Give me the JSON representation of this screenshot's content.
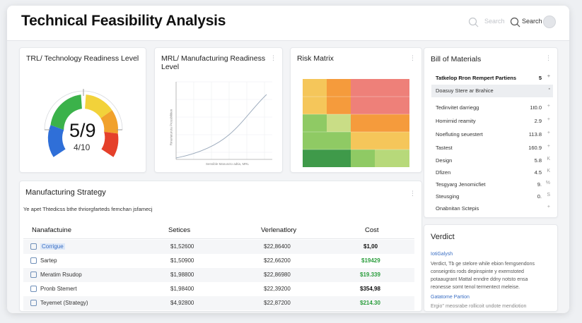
{
  "header": {
    "title": "Technical Feasibility Analysis",
    "search_placeholder": "Search",
    "search_label": "Search",
    "icons": [
      "search-icon",
      "search-icon",
      "avatar"
    ]
  },
  "trl": {
    "title": "TRL/ Technology Readiness Level",
    "value": "5/9",
    "sub": "4/10",
    "level_fraction": 0.56,
    "colors": [
      "#2f6fd8",
      "#3bb24a",
      "#f2d23a",
      "#f1a12c",
      "#e5402a"
    ]
  },
  "mrl": {
    "title": "MRL/ Manufacturing Readiness Level",
    "xlabel": "Sensible Manuscto adtia, MRL",
    "ylabel": "Rmuriaturuta Prossbilitien"
  },
  "risk": {
    "title": "Risk Matrix",
    "colors": {
      "green_dark": "#3f9a4a",
      "green": "#8fca64",
      "yellow": "#f5c65a",
      "orange": "#f59b3c",
      "red": "#ee8079"
    }
  },
  "bom": {
    "title": "Bill of Materials",
    "rows": [
      {
        "name": "Tatkelop Rron Rempert Partiens",
        "value": "5",
        "icon": "+"
      },
      {
        "name": "Doasuy Stere ar Brahice",
        "value": "",
        "icon": "▪"
      },
      {
        "name": "Tedinvitet darriegg",
        "value": "1t0.0",
        "icon": "+"
      },
      {
        "name": "Homirnid reamity",
        "value": "2.9",
        "icon": "+"
      },
      {
        "name": "Noefluting seuestert",
        "value": "113.8",
        "icon": "+"
      },
      {
        "name": "Tastest",
        "value": "160.9",
        "icon": "+"
      },
      {
        "name": "Design",
        "value": "5.8",
        "icon": "K"
      },
      {
        "name": "Dfizen",
        "value": "4.5",
        "icon": "K"
      },
      {
        "name": "Tesgyarg Jenomicfiet",
        "value": "9.",
        "icon": "%"
      },
      {
        "name": "Steusging",
        "value": "0.",
        "icon": "S"
      },
      {
        "name": "Onabnitan Sctepis",
        "value": "",
        "icon": "+"
      }
    ]
  },
  "strategy": {
    "title": "Manufacturing Strategy",
    "subtitle": "Ye apet Thtedicss bthe thriorgfarteds femchan jsfamecj",
    "columns": [
      "Nanafactuine",
      "Setices",
      "Verlenatlory",
      "Cost"
    ],
    "rows": [
      {
        "name": "Corrigue",
        "setices": "$1,52600",
        "verl": "$22,86400",
        "cost": "$1,00",
        "cost_color": "dark",
        "selected": true
      },
      {
        "name": "Sartep",
        "setices": "$1,50900",
        "verl": "$22,66200",
        "cost": "$19429",
        "cost_color": "green"
      },
      {
        "name": "Meratim Rsudop",
        "setices": "$1,98800",
        "verl": "$22,86980",
        "cost": "$19.339",
        "cost_color": "green"
      },
      {
        "name": "Pronb Stemert",
        "setices": "$1,98400",
        "verl": "$22,39200",
        "cost": "$354,98",
        "cost_color": "dark"
      },
      {
        "name": "Teyemet (Strategy)",
        "setices": "$4,92800",
        "verl": "$22,87200",
        "cost": "$214.30",
        "cost_color": "green"
      }
    ]
  },
  "verdict": {
    "title": "Verdict",
    "heading1": "IotiGalysh",
    "lines": [
      "Verdict, Tb ge stelore while ebion femgsendons",
      "conseigntis rods depinspinte y exemstoted",
      "potaaugrant Mattal enndre ddny notsto ensa",
      "reonesse somt tenol termentect meleise."
    ],
    "heading2": "Gatatome Partion",
    "footer": "Ergio'' meosrabe rollicoit undote mendiotion"
  }
}
